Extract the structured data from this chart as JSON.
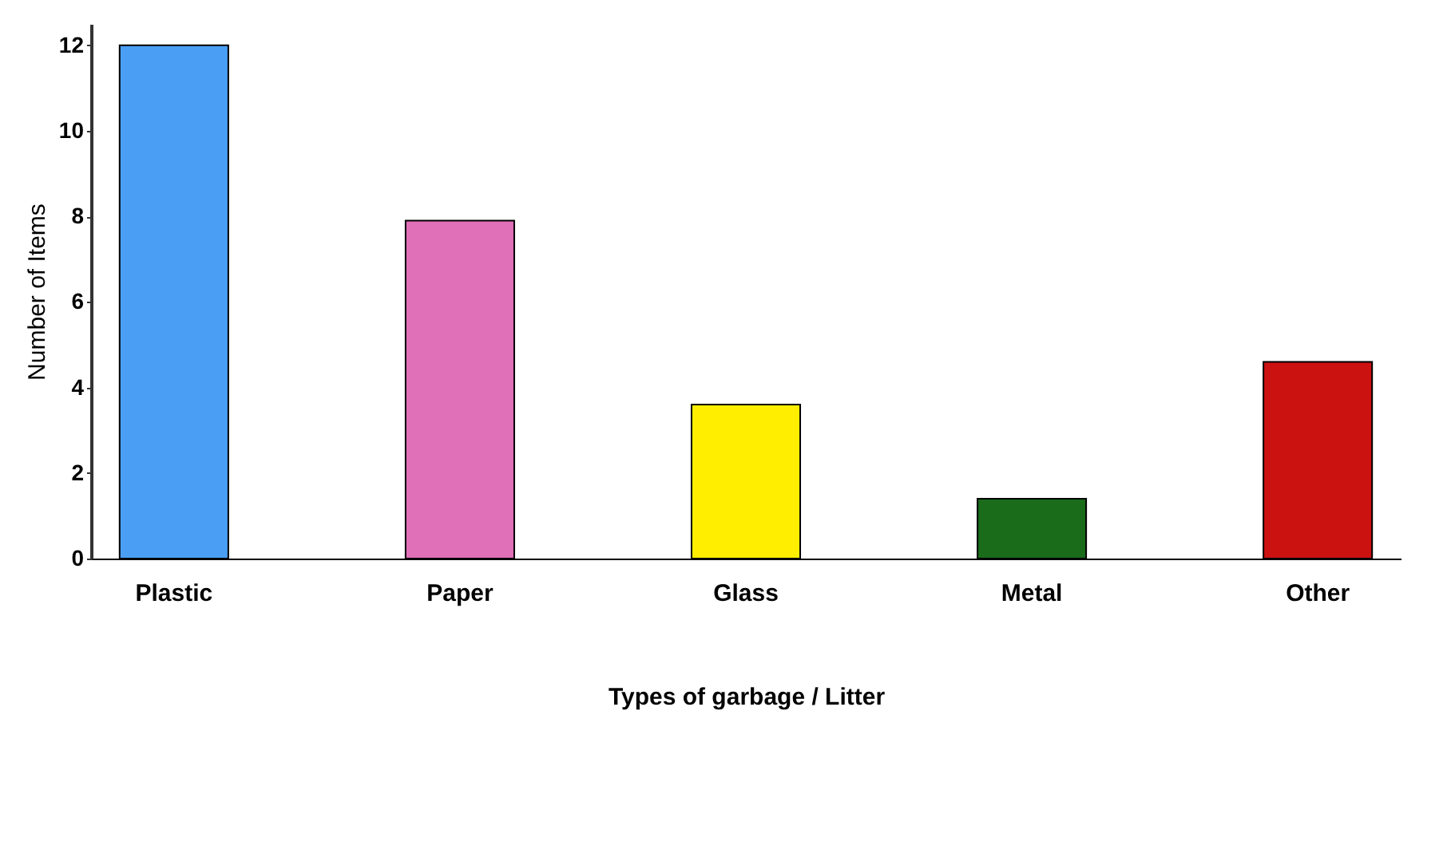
{
  "chart_data": {
    "type": "bar",
    "xlabel": "Types of garbage / Litter",
    "ylabel": "Number of Items",
    "categories": [
      "Plastic",
      "Paper",
      "Glass",
      "Metal",
      "Other"
    ],
    "values": [
      12,
      7.9,
      3.6,
      1.4,
      4.6
    ],
    "colors": [
      "#4a9ff5",
      "#e070b8",
      "#ffee00",
      "#1a6b1a",
      "#cc1111"
    ],
    "ylim": [
      0,
      12.5
    ],
    "yticks": [
      0,
      2,
      4,
      6,
      8,
      10,
      12
    ],
    "grid": false
  }
}
